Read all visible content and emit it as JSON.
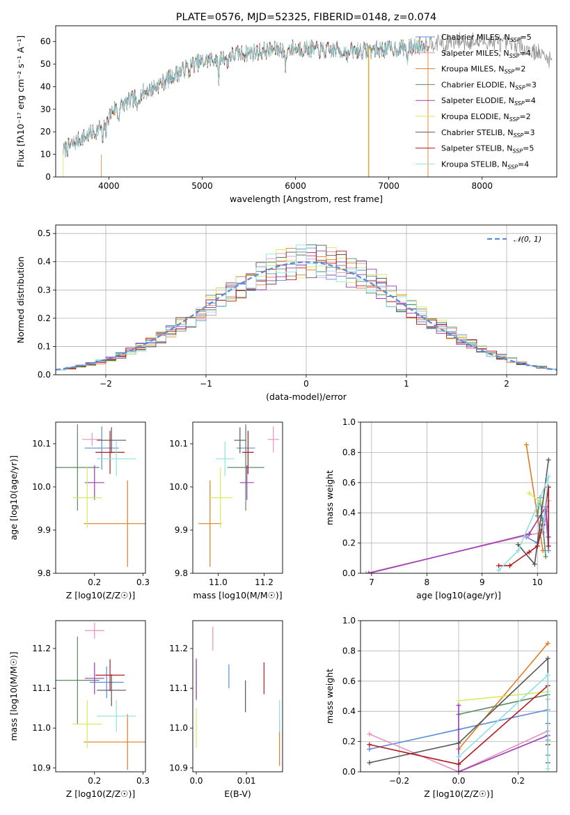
{
  "title": "PLATE=0576, MJD=52325, FIBERID=0148, z=0.074",
  "chart_data": [
    {
      "type": "line",
      "id": "spectrum",
      "title": "PLATE=0576, MJD=52325, FIBERID=0148, z=0.074",
      "xlabel": "wavelength [Angstrom, rest frame]",
      "ylabel": "Flux [fλ10⁻¹⁷ erg cm⁻² s⁻¹ A⁻¹]",
      "xlim": [
        3430,
        8800
      ],
      "ylim": [
        0,
        67
      ],
      "xticks": [
        4000,
        5000,
        6000,
        7000,
        8000
      ],
      "yticks": [
        0,
        10,
        20,
        30,
        40,
        50,
        60
      ],
      "grid": false,
      "legend_position": "top-right",
      "continuum": [
        [
          3520,
          12
        ],
        [
          3700,
          17
        ],
        [
          3850,
          20
        ],
        [
          3950,
          24
        ],
        [
          4050,
          30
        ],
        [
          4200,
          33
        ],
        [
          4350,
          37
        ],
        [
          4500,
          40
        ],
        [
          4700,
          45
        ],
        [
          4900,
          50
        ],
        [
          5100,
          52
        ],
        [
          5300,
          54
        ],
        [
          5500,
          55
        ],
        [
          5700,
          56
        ],
        [
          5900,
          57
        ],
        [
          6100,
          57
        ],
        [
          6300,
          56
        ],
        [
          6500,
          56
        ],
        [
          6700,
          56
        ],
        [
          6900,
          56.5
        ],
        [
          7100,
          57
        ],
        [
          7300,
          58
        ],
        [
          7500,
          60
        ],
        [
          7800,
          60
        ],
        [
          8100,
          60
        ],
        [
          8400,
          58
        ],
        [
          8600,
          55
        ],
        [
          8750,
          52
        ]
      ],
      "absorption_features": [
        [
          3934,
          -8
        ],
        [
          3969,
          -6
        ],
        [
          4102,
          -5
        ],
        [
          4300,
          -7
        ],
        [
          4861,
          -3
        ],
        [
          5175,
          -9
        ],
        [
          5270,
          -4
        ],
        [
          5893,
          -8
        ],
        [
          6563,
          -3
        ],
        [
          7200,
          -5
        ],
        [
          7600,
          -6
        ]
      ],
      "series": [
        {
          "name": "Chabrier MILES, N_SSP=5",
          "color": "#5b8bd6",
          "x_end": 7420
        },
        {
          "name": "Salpeter MILES, N_SSP=4",
          "color": "#e88fbe",
          "x_end": 7420
        },
        {
          "name": "Kroupa MILES, N_SSP=2",
          "color": "#e07b20",
          "x_end": 7420
        },
        {
          "name": "Chabrier ELODIE, N_SSP=3",
          "color": "#5a8a62",
          "x_end": 7420
        },
        {
          "name": "Salpeter ELODIE, N_SSP=4",
          "color": "#9a3cb4",
          "x_end": 7420
        },
        {
          "name": "Kroupa ELODIE, N_SSP=2",
          "color": "#d7ea5a",
          "x_end": 7420
        },
        {
          "name": "Chabrier STELIB, N_SSP=3",
          "color": "#555555",
          "x_end": 7420
        },
        {
          "name": "Salpeter STELIB, N_SSP=5",
          "color": "#b0191f",
          "x_end": 7420
        },
        {
          "name": "Kroupa STELIB, N_SSP=4",
          "color": "#8ee0e4",
          "x_end": 7420
        }
      ],
      "data_series": {
        "color": "#8f8f8f",
        "x_start": 3510,
        "x_end": 8750
      }
    },
    {
      "type": "line",
      "id": "residuals",
      "xlabel": "(data-model)/error",
      "ylabel": "Normed distribution",
      "xlim": [
        -2.5,
        2.5
      ],
      "ylim": [
        0,
        0.53
      ],
      "xticks": [
        -2,
        -1,
        0,
        1,
        2
      ],
      "yticks": [
        0.0,
        0.1,
        0.2,
        0.3,
        0.4,
        0.5
      ],
      "grid": true,
      "legend_position": "top-right",
      "reference_curve": {
        "name": "𝒩(0, 1)",
        "color": "#5b8bd6",
        "style": "dashed"
      },
      "histogram": {
        "bin_start": -2.5,
        "bin_width": 0.1,
        "bins": 50
      }
    },
    {
      "type": "scatter",
      "id": "age-vs-Z",
      "xlabel": "Z [log10(Z/Z☉)]",
      "ylabel": "age [log10(age/yr)]",
      "xlim": [
        0.12,
        0.305
      ],
      "ylim": [
        9.8,
        10.15
      ],
      "xticks": [
        0.2,
        0.3
      ],
      "yticks": [
        9.8,
        9.9,
        10.0,
        10.1
      ],
      "points": [
        {
          "x": 0.215,
          "y": 10.09,
          "xerr": 0.035,
          "yerr": 0.05,
          "color": "#5b8bd6"
        },
        {
          "x": 0.195,
          "y": 10.11,
          "xerr": 0.02,
          "yerr": 0.015,
          "color": "#e88fbe"
        },
        {
          "x": 0.268,
          "y": 9.915,
          "xerr": 0.09,
          "yerr": 0.1,
          "color": "#e07b20"
        },
        {
          "x": 0.165,
          "y": 10.045,
          "xerr": 0.045,
          "yerr": 0.1,
          "color": "#5a8a62"
        },
        {
          "x": 0.2,
          "y": 10.01,
          "xerr": 0.02,
          "yerr": 0.04,
          "color": "#9a3cb4"
        },
        {
          "x": 0.185,
          "y": 9.975,
          "xerr": 0.03,
          "yerr": 0.07,
          "color": "#d7ea5a"
        },
        {
          "x": 0.235,
          "y": 10.108,
          "xerr": 0.03,
          "yerr": 0.03,
          "color": "#555555"
        },
        {
          "x": 0.232,
          "y": 10.08,
          "xerr": 0.03,
          "yerr": 0.05,
          "color": "#b0191f"
        },
        {
          "x": 0.245,
          "y": 10.065,
          "xerr": 0.04,
          "yerr": 0.04,
          "color": "#8ee0e4"
        }
      ]
    },
    {
      "type": "scatter",
      "id": "age-vs-mass",
      "xlabel": "mass [log10(M/M☉)]",
      "ylabel": "",
      "xlim": [
        10.89,
        11.28
      ],
      "ylim": [
        9.8,
        10.15
      ],
      "xticks": [
        11.0,
        11.2
      ],
      "yticks": [
        9.8,
        9.9,
        10.0,
        10.1
      ],
      "points": [
        {
          "x": 11.12,
          "y": 10.09,
          "xerr": 0.04,
          "yerr": 0.05,
          "color": "#5b8bd6"
        },
        {
          "x": 11.24,
          "y": 10.11,
          "xerr": 0.025,
          "yerr": 0.03,
          "color": "#e88fbe"
        },
        {
          "x": 10.965,
          "y": 9.915,
          "xerr": 0.05,
          "yerr": 0.1,
          "color": "#e07b20"
        },
        {
          "x": 11.12,
          "y": 10.045,
          "xerr": 0.08,
          "yerr": 0.1,
          "color": "#5a8a62"
        },
        {
          "x": 11.125,
          "y": 10.01,
          "xerr": 0.03,
          "yerr": 0.04,
          "color": "#9a3cb4"
        },
        {
          "x": 11.01,
          "y": 9.975,
          "xerr": 0.05,
          "yerr": 0.07,
          "color": "#d7ea5a"
        },
        {
          "x": 11.095,
          "y": 10.108,
          "xerr": 0.025,
          "yerr": 0.03,
          "color": "#555555"
        },
        {
          "x": 11.13,
          "y": 10.08,
          "xerr": 0.025,
          "yerr": 0.05,
          "color": "#b0191f"
        },
        {
          "x": 11.03,
          "y": 10.065,
          "xerr": 0.04,
          "yerr": 0.04,
          "color": "#8ee0e4"
        }
      ]
    },
    {
      "type": "line",
      "id": "mass-weight-vs-age",
      "xlabel": "age [log10(age/yr)]",
      "ylabel": "mass weight",
      "xlim": [
        6.8,
        10.35
      ],
      "ylim": [
        0,
        1
      ],
      "xticks": [
        7,
        8,
        9,
        10
      ],
      "yticks": [
        0.0,
        0.2,
        0.4,
        0.6,
        0.8,
        1.0
      ],
      "grid": true,
      "series": [
        {
          "color": "#5b8bd6",
          "points": [
            [
              9.8,
              0.24
            ],
            [
              10.0,
              0.2
            ],
            [
              10.1,
              0.35
            ],
            [
              10.15,
              0.41
            ],
            [
              10.2,
              0.15
            ]
          ]
        },
        {
          "color": "#e88fbe",
          "points": [
            [
              6.9,
              0.0
            ],
            [
              9.8,
              0.25
            ],
            [
              10.1,
              0.27
            ],
            [
              10.2,
              0.48
            ]
          ]
        },
        {
          "color": "#e07b20",
          "points": [
            [
              9.8,
              0.85
            ],
            [
              10.1,
              0.15
            ]
          ]
        },
        {
          "color": "#5a8a62",
          "points": [
            [
              10.0,
              0.38
            ],
            [
              10.05,
              0.5
            ],
            [
              10.15,
              0.11
            ]
          ]
        },
        {
          "color": "#9a3cb4",
          "points": [
            [
              6.95,
              0.0
            ],
            [
              9.85,
              0.26
            ],
            [
              10.15,
              0.44
            ],
            [
              10.2,
              0.24
            ]
          ]
        },
        {
          "color": "#d7ea5a",
          "points": [
            [
              9.85,
              0.53
            ],
            [
              10.05,
              0.47
            ]
          ]
        },
        {
          "color": "#555555",
          "points": [
            [
              9.65,
              0.19
            ],
            [
              9.95,
              0.06
            ],
            [
              10.2,
              0.75
            ]
          ]
        },
        {
          "color": "#b0191f",
          "points": [
            [
              9.3,
              0.05
            ],
            [
              9.5,
              0.05
            ],
            [
              9.85,
              0.14
            ],
            [
              10.0,
              0.18
            ],
            [
              10.1,
              0.32
            ],
            [
              10.2,
              0.57
            ],
            [
              10.2,
              0.18
            ]
          ]
        },
        {
          "color": "#8ee0e4",
          "points": [
            [
              9.3,
              0.02
            ],
            [
              9.65,
              0.15
            ],
            [
              10.0,
              0.45
            ],
            [
              10.2,
              0.64
            ],
            [
              10.1,
              0.3
            ]
          ]
        }
      ]
    },
    {
      "type": "scatter",
      "id": "mass-vs-Z",
      "xlabel": "Z [log10(Z/Z☉)]",
      "ylabel": "mass [log10(M/M☉)]",
      "xlim": [
        0.12,
        0.305
      ],
      "ylim": [
        10.89,
        11.27
      ],
      "xticks": [
        0.2,
        0.3
      ],
      "yticks": [
        10.9,
        11.0,
        11.1,
        11.2
      ],
      "points": [
        {
          "x": 0.225,
          "y": 11.115,
          "xerr": 0.035,
          "yerr": 0.04,
          "color": "#5b8bd6"
        },
        {
          "x": 0.2,
          "y": 11.245,
          "xerr": 0.02,
          "yerr": 0.02,
          "color": "#e88fbe"
        },
        {
          "x": 0.268,
          "y": 10.965,
          "xerr": 0.09,
          "yerr": 0.07,
          "color": "#e07b20"
        },
        {
          "x": 0.165,
          "y": 11.12,
          "xerr": 0.045,
          "yerr": 0.11,
          "color": "#5a8a62"
        },
        {
          "x": 0.2,
          "y": 11.125,
          "xerr": 0.02,
          "yerr": 0.04,
          "color": "#9a3cb4"
        },
        {
          "x": 0.185,
          "y": 11.01,
          "xerr": 0.03,
          "yerr": 0.06,
          "color": "#d7ea5a"
        },
        {
          "x": 0.235,
          "y": 11.095,
          "xerr": 0.03,
          "yerr": 0.04,
          "color": "#555555"
        },
        {
          "x": 0.232,
          "y": 11.133,
          "xerr": 0.03,
          "yerr": 0.04,
          "color": "#b0191f"
        },
        {
          "x": 0.245,
          "y": 11.03,
          "xerr": 0.04,
          "yerr": 0.04,
          "color": "#8ee0e4"
        }
      ]
    },
    {
      "type": "scatter",
      "id": "mass-vs-EBV",
      "xlabel": "E(B-V)",
      "ylabel": "",
      "xlim": [
        -0.0007,
        0.0172
      ],
      "ylim": [
        10.89,
        11.27
      ],
      "xticks": [
        0.0,
        0.01
      ],
      "yticks": [
        10.9,
        11.0,
        11.1,
        11.2
      ],
      "points": [
        {
          "x": 0.0065,
          "y": 11.13,
          "xerr": 0,
          "yerr": 0.03,
          "color": "#5b8bd6"
        },
        {
          "x": 0.0033,
          "y": 11.225,
          "xerr": 0,
          "yerr": 0.03,
          "color": "#e88fbe"
        },
        {
          "x": 0.0166,
          "y": 10.965,
          "xerr": 0,
          "yerr": 0.06,
          "color": "#e07b20"
        },
        {
          "x": 0.0,
          "y": 11.12,
          "xerr": 0,
          "yerr": 0.05,
          "color": "#5a8a62"
        },
        {
          "x": 0.0,
          "y": 11.125,
          "xerr": 0,
          "yerr": 0.05,
          "color": "#9a3cb4"
        },
        {
          "x": 0.0,
          "y": 11.0,
          "xerr": 0,
          "yerr": 0.05,
          "color": "#d7ea5a"
        },
        {
          "x": 0.0098,
          "y": 11.08,
          "xerr": 0,
          "yerr": 0.04,
          "color": "#555555"
        },
        {
          "x": 0.0135,
          "y": 11.125,
          "xerr": 0,
          "yerr": 0.04,
          "color": "#b0191f"
        },
        {
          "x": 0.0166,
          "y": 11.03,
          "xerr": 0,
          "yerr": 0.04,
          "color": "#8ee0e4"
        }
      ]
    },
    {
      "type": "line",
      "id": "mass-weight-vs-Z",
      "xlabel": "Z [log10(Z/Z☉)]",
      "ylabel": "mass weight",
      "xlim": [
        -0.33,
        0.33
      ],
      "ylim": [
        0,
        1
      ],
      "xticks": [
        -0.2,
        0.0,
        0.2
      ],
      "yticks": [
        0.0,
        0.2,
        0.4,
        0.6,
        0.8,
        1.0
      ],
      "grid": true,
      "series": [
        {
          "color": "#5b8bd6",
          "points": [
            [
              -0.3,
              0.15
            ],
            [
              0.0,
              0.28
            ],
            [
              0.3,
              0.41
            ],
            [
              0.3,
              0.21
            ]
          ]
        },
        {
          "color": "#e88fbe",
          "points": [
            [
              -0.3,
              0.25
            ],
            [
              0.0,
              0.0
            ],
            [
              0.3,
              0.27
            ],
            [
              0.3,
              0.48
            ]
          ]
        },
        {
          "color": "#e07b20",
          "points": [
            [
              0.0,
              0.15
            ],
            [
              0.3,
              0.85
            ]
          ]
        },
        {
          "color": "#5a8a62",
          "points": [
            [
              0.0,
              0.38
            ],
            [
              0.3,
              0.51
            ],
            [
              0.3,
              0.11
            ]
          ]
        },
        {
          "color": "#9a3cb4",
          "points": [
            [
              0.0,
              0.44
            ],
            [
              0.0,
              0.0
            ],
            [
              0.3,
              0.24
            ],
            [
              0.3,
              0.32
            ]
          ]
        },
        {
          "color": "#d7ea5a",
          "points": [
            [
              0.0,
              0.47
            ],
            [
              0.3,
              0.53
            ]
          ]
        },
        {
          "color": "#555555",
          "points": [
            [
              -0.3,
              0.06
            ],
            [
              0.0,
              0.19
            ],
            [
              0.3,
              0.75
            ],
            [
              0.3,
              0.06
            ]
          ]
        },
        {
          "color": "#b0191f",
          "points": [
            [
              -0.3,
              0.18
            ],
            [
              0.0,
              0.05
            ],
            [
              0.3,
              0.57
            ],
            [
              0.3,
              0.18
            ]
          ]
        },
        {
          "color": "#8ee0e4",
          "points": [
            [
              0.0,
              0.1
            ],
            [
              0.3,
              0.64
            ],
            [
              0.3,
              0.02
            ]
          ]
        }
      ]
    }
  ]
}
